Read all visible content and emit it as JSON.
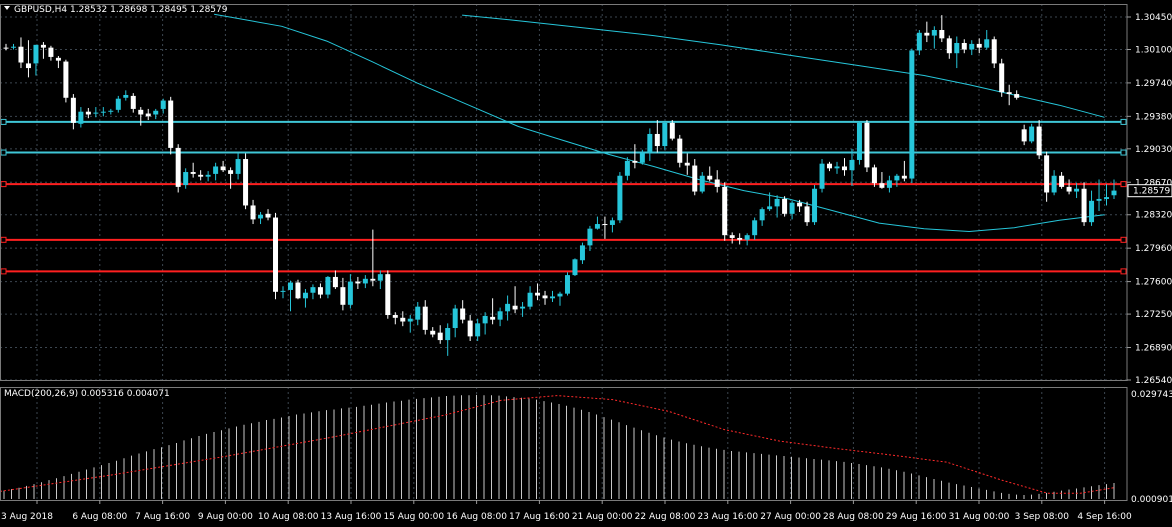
{
  "chart_data": {
    "type": "candlestick",
    "title": "GBPUSD,H4  1.28532 1.28698 1.28495 1.28579",
    "indicator_title": "MACD(200,26,9) 0.005316 0.004071",
    "price_axis_ticks": [
      "1.30450",
      "1.30100",
      "1.29740",
      "1.29380",
      "1.29030",
      "1.28670",
      "1.28320",
      "1.27960",
      "1.27600",
      "1.27250",
      "1.26890",
      "1.26540"
    ],
    "price_axis_range": [
      1.2654,
      1.3045
    ],
    "current_price": "1.28579",
    "macd_axis_ticks": [
      "0.029743",
      "0.000901"
    ],
    "macd_axis_range": [
      0.000901,
      0.029743
    ],
    "time_axis_labels": [
      "3 Aug 2018",
      "6 Aug 08:00",
      "7 Aug 16:00",
      "9 Aug 00:00",
      "10 Aug 08:00",
      "13 Aug 16:00",
      "15 Aug 00:00",
      "16 Aug 08:00",
      "17 Aug 16:00",
      "21 Aug 00:00",
      "22 Aug 08:00",
      "23 Aug 16:00",
      "27 Aug 00:00",
      "28 Aug 08:00",
      "29 Aug 16:00",
      "31 Aug 00:00",
      "3 Sep 08:00",
      "4 Sep 16:00"
    ],
    "horizontal_levels": [
      {
        "price": 1.2932,
        "color": "#3fc6d6"
      },
      {
        "price": 1.2899,
        "color": "#3fc6d6"
      },
      {
        "price": 1.2865,
        "color": "#ff2020"
      },
      {
        "price": 1.2805,
        "color": "#ff2020"
      },
      {
        "price": 1.2771,
        "color": "#ff2020"
      }
    ],
    "candles": [
      [
        1.3012,
        1.3016,
        1.3009,
        1.3011
      ],
      [
        1.3012,
        1.3016,
        1.301,
        1.3013
      ],
      [
        1.3013,
        1.3023,
        1.299,
        1.2996
      ],
      [
        1.2995,
        1.302,
        1.298,
        1.299
      ],
      [
        1.2995,
        1.3015,
        1.2982,
        1.3015
      ],
      [
        1.3015,
        1.3018,
        1.3,
        1.3012
      ],
      [
        1.3012,
        1.3014,
        1.2998,
        1.3002
      ],
      [
        1.3001,
        1.3003,
        1.299,
        1.2998
      ],
      [
        1.2997,
        1.2999,
        1.2953,
        1.2958
      ],
      [
        1.2958,
        1.2962,
        1.2924,
        1.2931
      ],
      [
        1.293,
        1.2948,
        1.2926,
        1.2943
      ],
      [
        1.2943,
        1.2947,
        1.2936,
        1.294
      ],
      [
        1.2941,
        1.2948,
        1.2937,
        1.2942
      ],
      [
        1.2942,
        1.2948,
        1.2938,
        1.2943
      ],
      [
        1.2943,
        1.2946,
        1.294,
        1.2944
      ],
      [
        1.2945,
        1.296,
        1.2942,
        1.2957
      ],
      [
        1.2958,
        1.2966,
        1.2955,
        1.2961
      ],
      [
        1.296,
        1.2963,
        1.2942,
        1.2946
      ],
      [
        1.2945,
        1.2948,
        1.2928,
        1.294
      ],
      [
        1.2941,
        1.2946,
        1.2934,
        1.2938
      ],
      [
        1.294,
        1.2946,
        1.2935,
        1.2944
      ],
      [
        1.2946,
        1.2957,
        1.2941,
        1.2955
      ],
      [
        1.2955,
        1.2959,
        1.2897,
        1.2904
      ],
      [
        1.2904,
        1.2908,
        1.2856,
        1.2862
      ],
      [
        1.2864,
        1.2882,
        1.286,
        1.2878
      ],
      [
        1.2878,
        1.2888,
        1.2872,
        1.2876
      ],
      [
        1.2875,
        1.288,
        1.2869,
        1.2873
      ],
      [
        1.2873,
        1.2879,
        1.2868,
        1.2875
      ],
      [
        1.2876,
        1.2888,
        1.2869,
        1.2884
      ],
      [
        1.2884,
        1.289,
        1.2878,
        1.288
      ],
      [
        1.288,
        1.2883,
        1.286,
        1.2876
      ],
      [
        1.2876,
        1.2898,
        1.287,
        1.2892
      ],
      [
        1.2892,
        1.2898,
        1.2838,
        1.2842
      ],
      [
        1.2842,
        1.2848,
        1.2822,
        1.2827
      ],
      [
        1.2828,
        1.2835,
        1.2822,
        1.2832
      ],
      [
        1.2833,
        1.2838,
        1.2826,
        1.2829
      ],
      [
        1.2829,
        1.2834,
        1.2741,
        1.2749
      ],
      [
        1.2749,
        1.2755,
        1.2742,
        1.275
      ],
      [
        1.2751,
        1.2761,
        1.2728,
        1.2759
      ],
      [
        1.2759,
        1.2762,
        1.2741,
        1.2742
      ],
      [
        1.2742,
        1.2752,
        1.2732,
        1.2748
      ],
      [
        1.2748,
        1.2757,
        1.2741,
        1.2754
      ],
      [
        1.2754,
        1.2758,
        1.2742,
        1.2746
      ],
      [
        1.2746,
        1.2766,
        1.2742,
        1.2765
      ],
      [
        1.2765,
        1.2772,
        1.2752,
        1.2754
      ],
      [
        1.2754,
        1.2764,
        1.2729,
        1.2735
      ],
      [
        1.2735,
        1.2768,
        1.2731,
        1.276
      ],
      [
        1.276,
        1.2765,
        1.2752,
        1.2758
      ],
      [
        1.2758,
        1.2767,
        1.2753,
        1.2763
      ],
      [
        1.2763,
        1.2816,
        1.2755,
        1.2761
      ],
      [
        1.2761,
        1.2772,
        1.2752,
        1.2768
      ],
      [
        1.2768,
        1.2772,
        1.272,
        1.2724
      ],
      [
        1.2724,
        1.2727,
        1.2714,
        1.2721
      ],
      [
        1.2721,
        1.2728,
        1.2712,
        1.2717
      ],
      [
        1.2717,
        1.2724,
        1.2705,
        1.272
      ],
      [
        1.2719,
        1.2738,
        1.2713,
        1.2733
      ],
      [
        1.2733,
        1.274,
        1.2703,
        1.2708
      ],
      [
        1.2707,
        1.2711,
        1.27,
        1.2703
      ],
      [
        1.2705,
        1.2713,
        1.2693,
        1.2697
      ],
      [
        1.2697,
        1.2715,
        1.268,
        1.271
      ],
      [
        1.271,
        1.2735,
        1.27,
        1.2731
      ],
      [
        1.2731,
        1.274,
        1.2715,
        1.2719
      ],
      [
        1.2718,
        1.2724,
        1.2696,
        1.2701
      ],
      [
        1.2701,
        1.272,
        1.2696,
        1.2715
      ],
      [
        1.2715,
        1.2727,
        1.2703,
        1.2723
      ],
      [
        1.2722,
        1.2742,
        1.2714,
        1.2719
      ],
      [
        1.2719,
        1.2732,
        1.2712,
        1.2728
      ],
      [
        1.2728,
        1.2745,
        1.2718,
        1.2736
      ],
      [
        1.2734,
        1.2755,
        1.2726,
        1.273
      ],
      [
        1.2731,
        1.2738,
        1.2722,
        1.2733
      ],
      [
        1.2733,
        1.2755,
        1.273,
        1.2748
      ],
      [
        1.2748,
        1.2758,
        1.274,
        1.2745
      ],
      [
        1.2745,
        1.275,
        1.2735,
        1.2742
      ],
      [
        1.2742,
        1.275,
        1.2738,
        1.2744
      ],
      [
        1.2744,
        1.2749,
        1.2734,
        1.2747
      ],
      [
        1.2747,
        1.277,
        1.2745,
        1.2767
      ],
      [
        1.2767,
        1.2785,
        1.2766,
        1.2784
      ],
      [
        1.2783,
        1.2802,
        1.2779,
        1.2799
      ],
      [
        1.2799,
        1.282,
        1.2793,
        1.2817
      ],
      [
        1.2817,
        1.283,
        1.2816,
        1.2822
      ],
      [
        1.2822,
        1.283,
        1.2806,
        1.2821
      ],
      [
        1.2821,
        1.2829,
        1.2813,
        1.2826
      ],
      [
        1.2826,
        1.2878,
        1.2823,
        1.2874
      ],
      [
        1.2874,
        1.2894,
        1.2869,
        1.289
      ],
      [
        1.289,
        1.2908,
        1.2882,
        1.2888
      ],
      [
        1.2888,
        1.2902,
        1.2886,
        1.2899
      ],
      [
        1.2899,
        1.2925,
        1.289,
        1.2919
      ],
      [
        1.2919,
        1.2934,
        1.2899,
        1.2906
      ],
      [
        1.2906,
        1.2933,
        1.2902,
        1.2931
      ],
      [
        1.2931,
        1.2934,
        1.2912,
        1.2914
      ],
      [
        1.2914,
        1.2918,
        1.2883,
        1.2888
      ],
      [
        1.2888,
        1.2898,
        1.2875,
        1.2885
      ],
      [
        1.2885,
        1.2892,
        1.2853,
        1.2857
      ],
      [
        1.2857,
        1.2878,
        1.2855,
        1.2874
      ],
      [
        1.2874,
        1.2884,
        1.2868,
        1.287
      ],
      [
        1.287,
        1.288,
        1.2856,
        1.2862
      ],
      [
        1.2862,
        1.2867,
        1.2804,
        1.281
      ],
      [
        1.281,
        1.2813,
        1.2801,
        1.2807
      ],
      [
        1.2807,
        1.2812,
        1.28,
        1.2805
      ],
      [
        1.2805,
        1.2812,
        1.2799,
        1.281
      ],
      [
        1.281,
        1.2829,
        1.2805,
        1.2826
      ],
      [
        1.2826,
        1.284,
        1.282,
        1.2838
      ],
      [
        1.2838,
        1.2856,
        1.2836,
        1.2841
      ],
      [
        1.2841,
        1.2853,
        1.2829,
        1.2849
      ],
      [
        1.2849,
        1.2852,
        1.283,
        1.2833
      ],
      [
        1.2833,
        1.2847,
        1.2827,
        1.2845
      ],
      [
        1.2845,
        1.2848,
        1.2835,
        1.2841
      ],
      [
        1.2841,
        1.2846,
        1.282,
        1.2824
      ],
      [
        1.2824,
        1.2864,
        1.2821,
        1.286
      ],
      [
        1.286,
        1.2892,
        1.2856,
        1.2887
      ],
      [
        1.2887,
        1.2889,
        1.2879,
        1.2882
      ],
      [
        1.2882,
        1.2889,
        1.2876,
        1.2884
      ],
      [
        1.2884,
        1.2893,
        1.2874,
        1.288
      ],
      [
        1.288,
        1.2903,
        1.2863,
        1.2891
      ],
      [
        1.2891,
        1.2933,
        1.2886,
        1.2931
      ],
      [
        1.2931,
        1.2934,
        1.2878,
        1.2883
      ],
      [
        1.2883,
        1.2886,
        1.2862,
        1.2866
      ],
      [
        1.2866,
        1.2878,
        1.286,
        1.2861
      ],
      [
        1.2861,
        1.2874,
        1.2856,
        1.2869
      ],
      [
        1.2869,
        1.2876,
        1.2862,
        1.2874
      ],
      [
        1.2874,
        1.289,
        1.2868,
        1.2871
      ],
      [
        1.2871,
        1.3011,
        1.2866,
        1.3009
      ],
      [
        1.3009,
        1.3031,
        1.3004,
        1.3028
      ],
      [
        1.3028,
        1.304,
        1.3018,
        1.3025
      ],
      [
        1.3025,
        1.3035,
        1.3011,
        1.3031
      ],
      [
        1.3031,
        1.3047,
        1.3018,
        1.3022
      ],
      [
        1.3022,
        1.3025,
        1.3,
        1.3006
      ],
      [
        1.3006,
        1.3024,
        1.299,
        1.3017
      ],
      [
        1.3017,
        1.3021,
        1.3006,
        1.301
      ],
      [
        1.301,
        1.302,
        1.3004,
        1.3016
      ],
      [
        1.3016,
        1.3022,
        1.3006,
        1.3012
      ],
      [
        1.3012,
        1.3031,
        1.301,
        1.3021
      ],
      [
        1.3021,
        1.3024,
        1.299,
        1.2995
      ],
      [
        1.2995,
        1.3,
        1.2959,
        1.2964
      ],
      [
        1.2964,
        1.2972,
        1.295,
        1.2962
      ],
      [
        1.2962,
        1.2966,
        1.2956,
        1.2958
      ],
      [
        1.2924,
        1.2929,
        1.2907,
        1.2911
      ],
      [
        1.2911,
        1.293,
        1.2909,
        1.2927
      ],
      [
        1.2927,
        1.2934,
        1.2892,
        1.2896
      ],
      [
        1.2896,
        1.29,
        1.2846,
        1.2856
      ],
      [
        1.2856,
        1.288,
        1.2853,
        1.2874
      ],
      [
        1.2874,
        1.2878,
        1.286,
        1.2862
      ],
      [
        1.2862,
        1.287,
        1.2854,
        1.2857
      ],
      [
        1.2857,
        1.2866,
        1.285,
        1.286
      ],
      [
        1.286,
        1.2867,
        1.282,
        1.2824
      ],
      [
        1.2824,
        1.2858,
        1.282,
        1.2847
      ],
      [
        1.2847,
        1.287,
        1.2836,
        1.2849
      ],
      [
        1.2849,
        1.2865,
        1.2842,
        1.2851
      ],
      [
        1.2853,
        1.287,
        1.2849,
        1.2858
      ]
    ],
    "ma_series_1": [
      [
        0.19,
        1.3048
      ],
      [
        0.25,
        1.3035
      ],
      [
        0.29,
        1.3019
      ],
      [
        0.33,
        1.2997
      ],
      [
        0.37,
        1.2974
      ],
      [
        0.42,
        1.2948
      ],
      [
        0.46,
        1.2927
      ],
      [
        0.5,
        1.2912
      ],
      [
        0.54,
        1.2897
      ],
      [
        0.58,
        1.2884
      ],
      [
        0.62,
        1.287
      ],
      [
        0.66,
        1.2858
      ],
      [
        0.7,
        1.2849
      ],
      [
        0.74,
        1.2836
      ],
      [
        0.78,
        1.2823
      ],
      [
        0.82,
        1.2817
      ],
      [
        0.86,
        1.2814
      ],
      [
        0.9,
        1.2818
      ],
      [
        0.94,
        1.2826
      ],
      [
        0.98,
        1.2832
      ]
    ],
    "ma_series_2": [
      [
        0.41,
        1.3047
      ],
      [
        0.46,
        1.3041
      ],
      [
        0.52,
        1.3033
      ],
      [
        0.58,
        1.3025
      ],
      [
        0.64,
        1.3015
      ],
      [
        0.7,
        1.3004
      ],
      [
        0.76,
        1.2993
      ],
      [
        0.82,
        1.2982
      ],
      [
        0.86,
        1.2972
      ],
      [
        0.9,
        1.2961
      ],
      [
        0.94,
        1.295
      ],
      [
        0.98,
        1.2937
      ]
    ],
    "macd_values": [
      0.0032,
      0.0036,
      0.004,
      0.0045,
      0.005,
      0.0055,
      0.0061,
      0.0066,
      0.0072,
      0.0078,
      0.0084,
      0.009,
      0.0096,
      0.0102,
      0.0108,
      0.0114,
      0.0121,
      0.0128,
      0.0134,
      0.014,
      0.0146,
      0.0151,
      0.0157,
      0.0163,
      0.017,
      0.0176,
      0.0182,
      0.0188,
      0.0193,
      0.0198,
      0.0203,
      0.0208,
      0.0213,
      0.0217,
      0.0221,
      0.0226,
      0.0229,
      0.0233,
      0.0237,
      0.0241,
      0.0244,
      0.0247,
      0.025,
      0.0253,
      0.0255,
      0.0258,
      0.026,
      0.0262,
      0.0265,
      0.0268,
      0.0271,
      0.0274,
      0.0277,
      0.0279,
      0.0282,
      0.0284,
      0.0286,
      0.0288,
      0.029,
      0.0292,
      0.0293,
      0.0294,
      0.0294,
      0.0295,
      0.0294,
      0.0294,
      0.0293,
      0.0291,
      0.0289,
      0.0287,
      0.0285,
      0.0282,
      0.0278,
      0.0274,
      0.027,
      0.0265,
      0.026,
      0.0254,
      0.0248,
      0.0241,
      0.0234,
      0.0227,
      0.022,
      0.0212,
      0.0205,
      0.0198,
      0.0191,
      0.0184,
      0.0178,
      0.0172,
      0.0167,
      0.0162,
      0.0158,
      0.0154,
      0.015,
      0.0147,
      0.0144,
      0.0141,
      0.0139,
      0.0137,
      0.0135,
      0.0133,
      0.0131,
      0.0129,
      0.0127,
      0.0125,
      0.0123,
      0.0121,
      0.0119,
      0.0117,
      0.0115,
      0.0113,
      0.0111,
      0.0108,
      0.0105,
      0.0102,
      0.0099,
      0.0096,
      0.0092,
      0.0088,
      0.0084,
      0.0079,
      0.0074,
      0.0069,
      0.0064,
      0.0059,
      0.0054,
      0.005,
      0.0046,
      0.0042,
      0.0038,
      0.0034,
      0.003,
      0.0026,
      0.0023,
      0.0021,
      0.002,
      0.0021,
      0.0023,
      0.0026,
      0.0029,
      0.0032,
      0.0035,
      0.0038,
      0.0041,
      0.0044,
      0.0047,
      0.005,
      0.0053
    ],
    "macd_signal": [
      [
        0.0,
        0.003
      ],
      [
        0.1,
        0.0075
      ],
      [
        0.2,
        0.0125
      ],
      [
        0.3,
        0.018
      ],
      [
        0.4,
        0.024
      ],
      [
        0.45,
        0.028
      ],
      [
        0.5,
        0.0293
      ],
      [
        0.55,
        0.0282
      ],
      [
        0.6,
        0.025
      ],
      [
        0.65,
        0.02
      ],
      [
        0.7,
        0.0168
      ],
      [
        0.75,
        0.0148
      ],
      [
        0.8,
        0.013
      ],
      [
        0.85,
        0.011
      ],
      [
        0.9,
        0.006
      ],
      [
        0.94,
        0.0025
      ],
      [
        0.97,
        0.0025
      ],
      [
        1.0,
        0.004
      ]
    ],
    "colors": {
      "background": "#000000",
      "grid": "#3c4650",
      "bull_candle": "#26c6da",
      "bear_candle": "#ffffff",
      "ma_line": "#26c6da",
      "macd_hist": "#c8c8c8",
      "macd_signal": "#ff2a2a",
      "support": "#ff2020",
      "resistance": "#3fc6d6"
    }
  }
}
